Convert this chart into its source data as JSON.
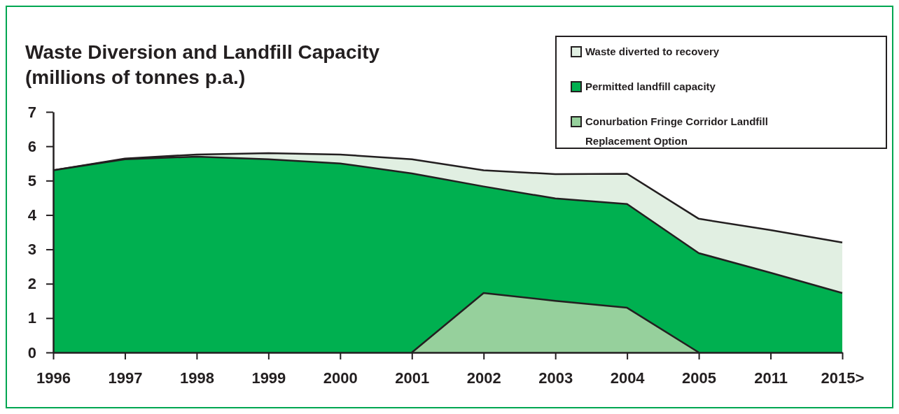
{
  "chart_data": {
    "type": "area",
    "title": "Waste Diversion and Landfill Capacity\n(millions of tonnes p.a.)",
    "categories": [
      "1996",
      "1997",
      "1998",
      "1999",
      "2000",
      "2001",
      "2002",
      "2003",
      "2004",
      "2005",
      "2011",
      "2015>"
    ],
    "series": [
      {
        "name": "Waste diverted to recovery",
        "color": "#e1efe2",
        "values": [
          5.3,
          5.64,
          5.76,
          5.8,
          5.76,
          5.62,
          5.3,
          5.19,
          5.2,
          3.89,
          3.56,
          3.2
        ]
      },
      {
        "name": "Permitted landfill capacity",
        "color": "#00b050",
        "values": [
          5.3,
          5.62,
          5.7,
          5.62,
          5.5,
          5.21,
          4.83,
          4.48,
          4.32,
          2.89,
          2.32,
          1.73
        ]
      },
      {
        "name": "Conurbation Fringe Corridor Landfill Replacement Option",
        "color": "#96d09c",
        "values": [
          null,
          null,
          null,
          null,
          null,
          0,
          1.73,
          1.5,
          1.3,
          0,
          null,
          null
        ]
      }
    ],
    "ylim": [
      0,
      7
    ],
    "yticks": [
      0,
      1,
      2,
      3,
      4,
      5,
      6,
      7
    ],
    "grid": false,
    "legend": "top right"
  }
}
